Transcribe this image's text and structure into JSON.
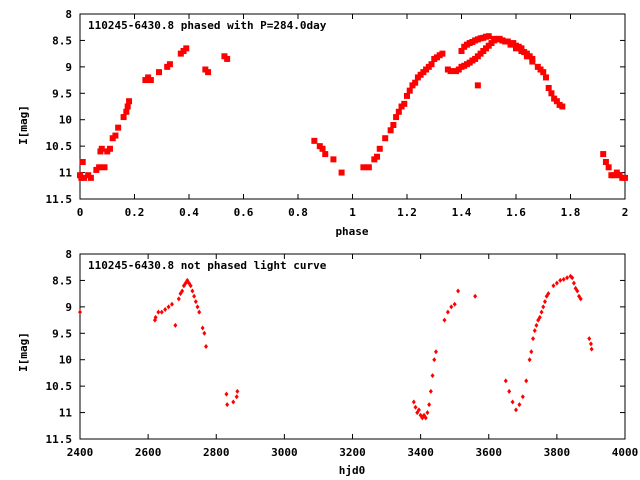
{
  "chart_data": [
    {
      "type": "scatter",
      "title": "110245-6430.8 phased with P=284.0day",
      "xlabel": "phase",
      "ylabel": "I[mag]",
      "xlim": [
        0,
        2
      ],
      "ylim": [
        8,
        11.5
      ],
      "y_inverted": true,
      "xticks": [
        0,
        0.2,
        0.4,
        0.6,
        0.8,
        1,
        1.2,
        1.4,
        1.6,
        1.8,
        2
      ],
      "xtick_labels": [
        "0",
        "0.2",
        "0.4",
        "0.6",
        "0.8",
        "1",
        "1.2",
        "1.4",
        "1.6",
        "1.8",
        "2"
      ],
      "yticks": [
        8,
        8.5,
        9,
        9.5,
        10,
        10.5,
        11,
        11.5
      ],
      "ytick_labels": [
        "8",
        "8.5",
        "9",
        "9.5",
        "10",
        "10.5",
        "11",
        "11.5"
      ],
      "series": [
        {
          "color": "#ff0000",
          "marker": "plus-square",
          "points": [
            [
              0.0,
              11.05
            ],
            [
              0.005,
              11.1
            ],
            [
              0.01,
              10.8
            ],
            [
              0.015,
              11.1
            ],
            [
              0.03,
              11.05
            ],
            [
              0.04,
              11.1
            ],
            [
              0.06,
              10.95
            ],
            [
              0.07,
              10.9
            ],
            [
              0.075,
              10.6
            ],
            [
              0.08,
              10.55
            ],
            [
              0.09,
              10.9
            ],
            [
              0.1,
              10.6
            ],
            [
              0.11,
              10.55
            ],
            [
              0.12,
              10.35
            ],
            [
              0.13,
              10.3
            ],
            [
              0.14,
              10.15
            ],
            [
              0.16,
              9.95
            ],
            [
              0.17,
              9.85
            ],
            [
              0.175,
              9.75
            ],
            [
              0.18,
              9.65
            ],
            [
              0.24,
              9.25
            ],
            [
              0.25,
              9.2
            ],
            [
              0.26,
              9.25
            ],
            [
              0.29,
              9.1
            ],
            [
              0.32,
              9.0
            ],
            [
              0.33,
              8.95
            ],
            [
              0.37,
              8.75
            ],
            [
              0.38,
              8.7
            ],
            [
              0.39,
              8.65
            ],
            [
              0.46,
              9.05
            ],
            [
              0.47,
              9.1
            ],
            [
              0.53,
              8.8
            ],
            [
              0.54,
              8.85
            ],
            [
              0.86,
              10.4
            ],
            [
              0.88,
              10.5
            ],
            [
              0.89,
              10.55
            ],
            [
              0.9,
              10.65
            ],
            [
              0.93,
              10.75
            ],
            [
              0.96,
              11.0
            ],
            [
              1.04,
              10.9
            ],
            [
              1.06,
              10.9
            ],
            [
              1.08,
              10.75
            ],
            [
              1.09,
              10.7
            ],
            [
              1.1,
              10.55
            ],
            [
              1.12,
              10.35
            ],
            [
              1.14,
              10.2
            ],
            [
              1.15,
              10.1
            ],
            [
              1.16,
              9.95
            ],
            [
              1.17,
              9.85
            ],
            [
              1.18,
              9.75
            ],
            [
              1.19,
              9.7
            ],
            [
              1.2,
              9.55
            ],
            [
              1.21,
              9.45
            ],
            [
              1.22,
              9.35
            ],
            [
              1.23,
              9.3
            ],
            [
              1.24,
              9.2
            ],
            [
              1.25,
              9.15
            ],
            [
              1.26,
              9.1
            ],
            [
              1.27,
              9.05
            ],
            [
              1.28,
              9.0
            ],
            [
              1.29,
              8.95
            ],
            [
              1.3,
              8.85
            ],
            [
              1.31,
              8.82
            ],
            [
              1.32,
              8.78
            ],
            [
              1.33,
              8.75
            ],
            [
              1.35,
              9.05
            ],
            [
              1.36,
              9.08
            ],
            [
              1.38,
              9.08
            ],
            [
              1.39,
              9.05
            ],
            [
              1.4,
              9.0
            ],
            [
              1.41,
              8.98
            ],
            [
              1.42,
              8.95
            ],
            [
              1.43,
              8.92
            ],
            [
              1.44,
              8.88
            ],
            [
              1.45,
              8.85
            ],
            [
              1.46,
              8.8
            ],
            [
              1.47,
              8.75
            ],
            [
              1.48,
              8.7
            ],
            [
              1.49,
              8.65
            ],
            [
              1.5,
              8.6
            ],
            [
              1.51,
              8.55
            ],
            [
              1.52,
              8.5
            ],
            [
              1.53,
              8.48
            ],
            [
              1.54,
              8.47
            ],
            [
              1.55,
              8.5
            ],
            [
              1.56,
              8.52
            ],
            [
              1.58,
              8.58
            ],
            [
              1.6,
              8.65
            ],
            [
              1.62,
              8.7
            ],
            [
              1.64,
              8.8
            ],
            [
              1.66,
              8.9
            ],
            [
              1.68,
              9.0
            ],
            [
              1.69,
              9.05
            ],
            [
              1.4,
              8.7
            ],
            [
              1.41,
              8.62
            ],
            [
              1.42,
              8.58
            ],
            [
              1.43,
              8.55
            ],
            [
              1.44,
              8.53
            ],
            [
              1.45,
              8.5
            ],
            [
              1.46,
              8.48
            ],
            [
              1.47,
              8.46
            ],
            [
              1.48,
              8.45
            ],
            [
              1.49,
              8.43
            ],
            [
              1.5,
              8.42
            ],
            [
              1.52,
              8.47
            ],
            [
              1.55,
              8.5
            ],
            [
              1.57,
              8.52
            ],
            [
              1.59,
              8.55
            ],
            [
              1.6,
              8.6
            ],
            [
              1.61,
              8.62
            ],
            [
              1.62,
              8.65
            ],
            [
              1.63,
              8.72
            ],
            [
              1.64,
              8.75
            ],
            [
              1.65,
              8.8
            ],
            [
              1.66,
              8.85
            ],
            [
              1.46,
              9.35
            ],
            [
              1.7,
              9.1
            ],
            [
              1.71,
              9.2
            ],
            [
              1.72,
              9.4
            ],
            [
              1.73,
              9.5
            ],
            [
              1.74,
              9.6
            ],
            [
              1.75,
              9.65
            ],
            [
              1.76,
              9.72
            ],
            [
              1.77,
              9.75
            ],
            [
              1.92,
              10.65
            ],
            [
              1.93,
              10.8
            ],
            [
              1.94,
              10.9
            ],
            [
              1.95,
              11.05
            ],
            [
              1.96,
              11.05
            ],
            [
              1.97,
              11.0
            ],
            [
              1.98,
              11.05
            ],
            [
              1.99,
              11.1
            ],
            [
              2.0,
              11.1
            ]
          ]
        }
      ]
    },
    {
      "type": "scatter",
      "title": "110245-6430.8 not phased light curve",
      "xlabel": "hjd0",
      "ylabel": "I[mag]",
      "xlim": [
        2400,
        4000
      ],
      "ylim": [
        8,
        11.5
      ],
      "y_inverted": true,
      "xticks": [
        2400,
        2600,
        2800,
        3000,
        3200,
        3400,
        3600,
        3800,
        4000
      ],
      "xtick_labels": [
        "2400",
        "2600",
        "2800",
        "3000",
        "3200",
        "3400",
        "3600",
        "3800",
        "4000"
      ],
      "yticks": [
        8,
        8.5,
        9,
        9.5,
        10,
        10.5,
        11,
        11.5
      ],
      "ytick_labels": [
        "8",
        "8.5",
        "9",
        "9.5",
        "10",
        "10.5",
        "11",
        "11.5"
      ],
      "series": [
        {
          "color": "#ff0000",
          "marker": "diamond",
          "points": [
            [
              2400,
              9.1
            ],
            [
              2620,
              9.25
            ],
            [
              2622,
              9.2
            ],
            [
              2630,
              9.1
            ],
            [
              2640,
              9.1
            ],
            [
              2650,
              9.05
            ],
            [
              2660,
              9.0
            ],
            [
              2670,
              8.95
            ],
            [
              2680,
              9.35
            ],
            [
              2690,
              8.85
            ],
            [
              2695,
              8.75
            ],
            [
              2700,
              8.7
            ],
            [
              2705,
              8.6
            ],
            [
              2710,
              8.55
            ],
            [
              2715,
              8.5
            ],
            [
              2720,
              8.55
            ],
            [
              2725,
              8.6
            ],
            [
              2730,
              8.7
            ],
            [
              2735,
              8.8
            ],
            [
              2740,
              8.9
            ],
            [
              2745,
              9.0
            ],
            [
              2750,
              9.1
            ],
            [
              2760,
              9.4
            ],
            [
              2765,
              9.5
            ],
            [
              2770,
              9.75
            ],
            [
              2830,
              10.65
            ],
            [
              2832,
              10.85
            ],
            [
              2850,
              10.8
            ],
            [
              2860,
              10.7
            ],
            [
              2862,
              10.6
            ],
            [
              3380,
              10.8
            ],
            [
              3385,
              10.9
            ],
            [
              3390,
              11.0
            ],
            [
              3395,
              10.95
            ],
            [
              3400,
              11.05
            ],
            [
              3405,
              11.1
            ],
            [
              3410,
              11.05
            ],
            [
              3415,
              11.1
            ],
            [
              3420,
              11.0
            ],
            [
              3425,
              10.85
            ],
            [
              3430,
              10.6
            ],
            [
              3435,
              10.3
            ],
            [
              3440,
              10.0
            ],
            [
              3445,
              9.85
            ],
            [
              3470,
              9.25
            ],
            [
              3480,
              9.1
            ],
            [
              3490,
              9.0
            ],
            [
              3500,
              8.95
            ],
            [
              3510,
              8.7
            ],
            [
              3560,
              8.8
            ],
            [
              3650,
              10.4
            ],
            [
              3660,
              10.6
            ],
            [
              3670,
              10.8
            ],
            [
              3680,
              10.95
            ],
            [
              3690,
              10.85
            ],
            [
              3700,
              10.7
            ],
            [
              3710,
              10.4
            ],
            [
              3720,
              10.0
            ],
            [
              3725,
              9.85
            ],
            [
              3730,
              9.6
            ],
            [
              3735,
              9.45
            ],
            [
              3740,
              9.35
            ],
            [
              3745,
              9.25
            ],
            [
              3750,
              9.2
            ],
            [
              3755,
              9.1
            ],
            [
              3760,
              9.0
            ],
            [
              3765,
              8.9
            ],
            [
              3770,
              8.8
            ],
            [
              3775,
              8.75
            ],
            [
              3790,
              8.6
            ],
            [
              3800,
              8.55
            ],
            [
              3810,
              8.5
            ],
            [
              3820,
              8.48
            ],
            [
              3830,
              8.45
            ],
            [
              3840,
              8.42
            ],
            [
              3845,
              8.45
            ],
            [
              3850,
              8.55
            ],
            [
              3855,
              8.65
            ],
            [
              3860,
              8.7
            ],
            [
              3865,
              8.8
            ],
            [
              3870,
              8.85
            ],
            [
              3895,
              9.6
            ],
            [
              3900,
              9.7
            ],
            [
              3902,
              9.8
            ]
          ]
        }
      ]
    }
  ]
}
